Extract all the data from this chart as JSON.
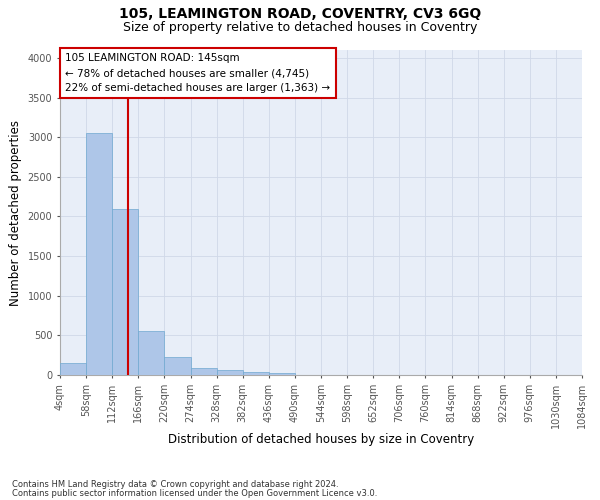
{
  "title": "105, LEAMINGTON ROAD, COVENTRY, CV3 6GQ",
  "subtitle": "Size of property relative to detached houses in Coventry",
  "xlabel": "Distribution of detached houses by size in Coventry",
  "ylabel": "Number of detached properties",
  "footnote1": "Contains HM Land Registry data © Crown copyright and database right 2024.",
  "footnote2": "Contains public sector information licensed under the Open Government Licence v3.0.",
  "annotation_line1": "105 LEAMINGTON ROAD: 145sqm",
  "annotation_line2": "← 78% of detached houses are smaller (4,745)",
  "annotation_line3": "22% of semi-detached houses are larger (1,363) →",
  "property_size": 145,
  "bin_edges": [
    4,
    58,
    112,
    166,
    220,
    274,
    328,
    382,
    436,
    490,
    544,
    598,
    652,
    706,
    760,
    814,
    868,
    922,
    976,
    1030,
    1084
  ],
  "bar_heights": [
    150,
    3050,
    2100,
    550,
    230,
    90,
    60,
    40,
    25,
    5,
    0,
    0,
    0,
    0,
    0,
    0,
    0,
    0,
    0,
    0
  ],
  "bar_color": "#aec6e8",
  "bar_edgecolor": "#6fa8d0",
  "vline_color": "#cc0000",
  "vline_x": 145,
  "annotation_box_edgecolor": "#cc0000",
  "annotation_box_facecolor": "#ffffff",
  "ylim": [
    0,
    4100
  ],
  "yticks": [
    0,
    500,
    1000,
    1500,
    2000,
    2500,
    3000,
    3500,
    4000
  ],
  "grid_color": "#d0d8e8",
  "bg_color": "#ffffff",
  "plot_bg_color": "#e8eef8",
  "title_fontsize": 10,
  "subtitle_fontsize": 9,
  "axis_label_fontsize": 8.5,
  "tick_fontsize": 7,
  "annotation_fontsize": 7.5,
  "footnote_fontsize": 6
}
